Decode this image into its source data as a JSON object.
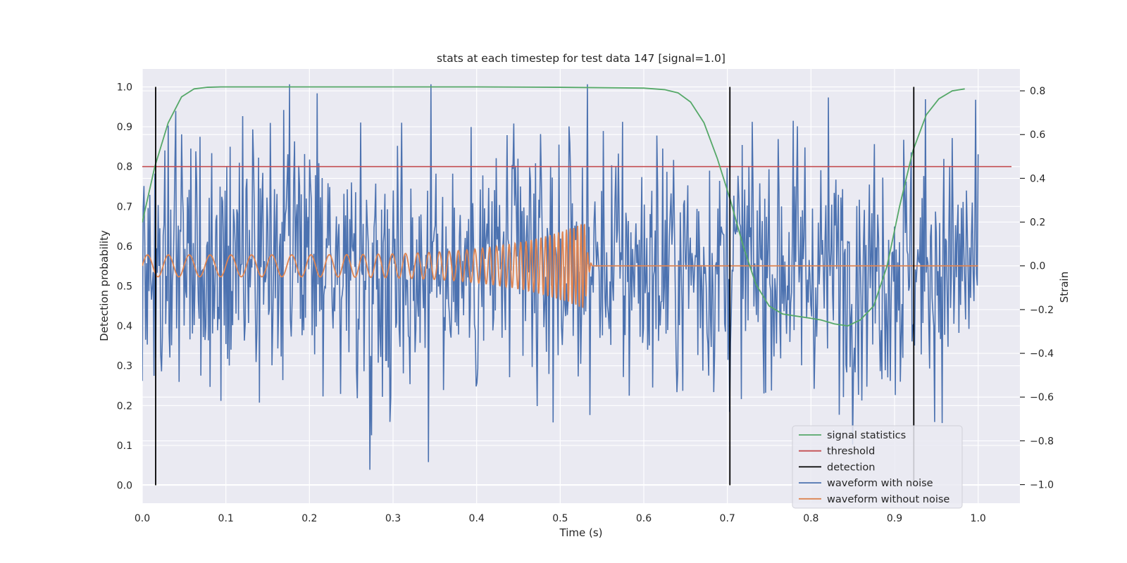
{
  "chart_data": {
    "type": "line",
    "title": "stats at each timestep for test data 147 [signal=1.0]",
    "xlabel": "Time (s)",
    "ylabel": "Detection probability",
    "y2label": "Strain",
    "xlim": [
      0.0,
      1.05
    ],
    "ylim": [
      -0.045,
      1.045
    ],
    "y2lim": [
      -1.085,
      0.9
    ],
    "x_ticks": [
      "0.0",
      "0.1",
      "0.2",
      "0.3",
      "0.4",
      "0.5",
      "0.6",
      "0.7",
      "0.8",
      "0.9",
      "1.0"
    ],
    "y_ticks": [
      "0.0",
      "0.1",
      "0.2",
      "0.3",
      "0.4",
      "0.5",
      "0.6",
      "0.7",
      "0.8",
      "0.9",
      "1.0"
    ],
    "y2_ticks": [
      "−1.0",
      "−0.8",
      "−0.6",
      "−0.4",
      "−0.2",
      "0.0",
      "0.2",
      "0.4",
      "0.6",
      "0.8"
    ],
    "grid": true,
    "legend_position": "lower-right",
    "legend": [
      {
        "label": "signal statistics",
        "color": "#55a868"
      },
      {
        "label": "threshold",
        "color": "#c44e52"
      },
      {
        "label": "detection",
        "color": "#000000"
      },
      {
        "label": "waveform with noise",
        "color": "#4c72b0"
      },
      {
        "label": "waveform without noise",
        "color": "#dd8452"
      }
    ],
    "signal_statistics": {
      "x": [
        0.0,
        0.015,
        0.031,
        0.047,
        0.062,
        0.078,
        0.094,
        0.2,
        0.3,
        0.4,
        0.5,
        0.6,
        0.625,
        0.641,
        0.656,
        0.672,
        0.688,
        0.703,
        0.719,
        0.734,
        0.75,
        0.766,
        0.781,
        0.797,
        0.812,
        0.828,
        0.844,
        0.859,
        0.875,
        0.891,
        0.906,
        0.922,
        0.938,
        0.953,
        0.969,
        0.984
      ],
      "y": [
        0.66,
        0.8,
        0.91,
        0.975,
        0.995,
        0.999,
        1.0,
        1.0,
        1.0,
        1.0,
        0.999,
        0.997,
        0.993,
        0.985,
        0.962,
        0.91,
        0.82,
        0.72,
        0.6,
        0.505,
        0.45,
        0.43,
        0.425,
        0.42,
        0.415,
        0.405,
        0.4,
        0.415,
        0.45,
        0.55,
        0.7,
        0.84,
        0.93,
        0.97,
        0.99,
        0.995
      ]
    },
    "threshold": {
      "y": 0.8
    },
    "detections": {
      "x": [
        0.016,
        0.703,
        0.923
      ],
      "y_range": [
        0.0,
        1.0
      ]
    },
    "waveform_with_noise": {
      "x_range": [
        0.0,
        1.0
      ],
      "n_samples": 1000,
      "strain_std": 0.3,
      "strain_range": [
        -1.0,
        0.83
      ]
    },
    "waveform_without_noise": {
      "x_range": [
        0.0,
        1.0
      ],
      "merger_time": 0.53,
      "amplitude_start": 0.05,
      "amplitude_peak": 0.2,
      "frequency_start_hz": 40,
      "frequency_peak_hz": 250,
      "post_merger_strain": 0.0
    }
  }
}
